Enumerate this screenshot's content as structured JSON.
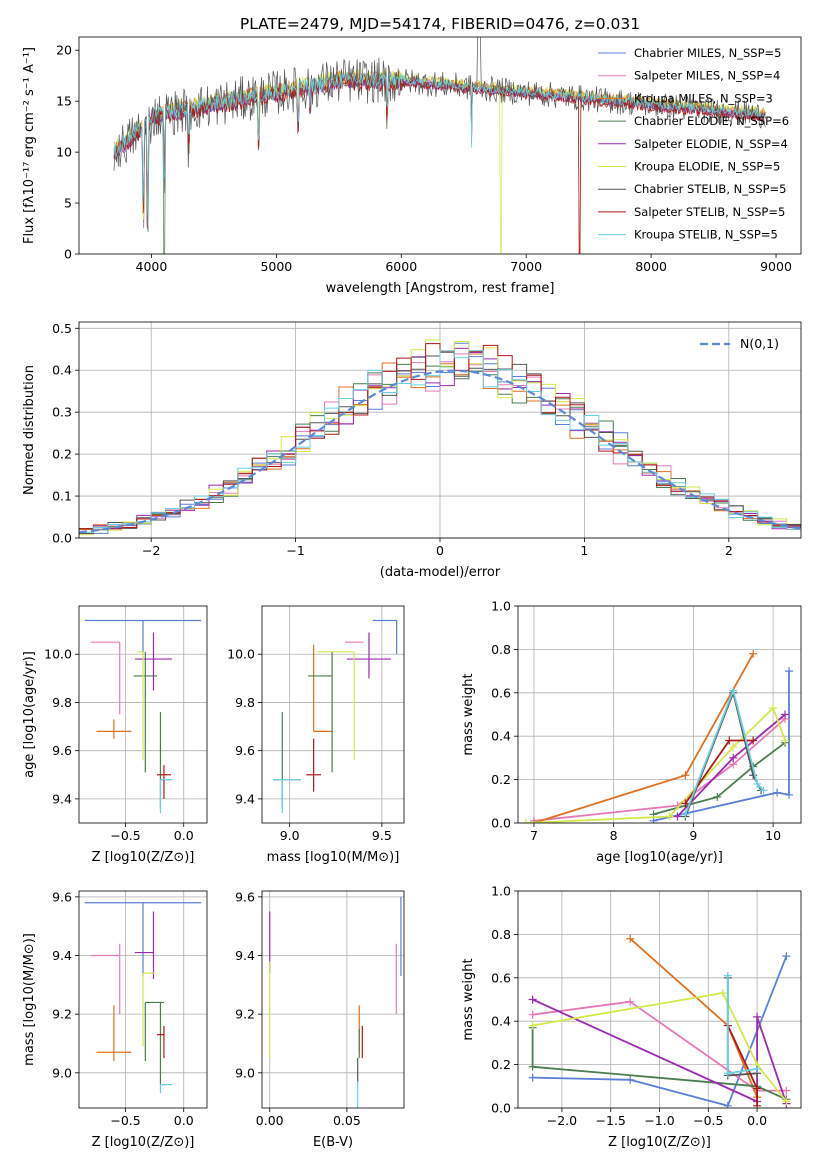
{
  "figure": {
    "title": "PLATE=2479, MJD=54174, FIBERID=0476, z=0.031"
  },
  "chart_data": [
    {
      "id": "spectrum",
      "type": "line",
      "xlabel": "wavelength [Angstrom, rest frame]",
      "ylabel": "Flux [fλ10⁻¹⁷ erg cm⁻² s⁻¹ A⁻¹]",
      "xlim": [
        3420,
        9200
      ],
      "ylim": [
        0,
        21.3
      ],
      "xticks": [
        4000,
        5000,
        6000,
        7000,
        8000,
        9000
      ],
      "yticks": [
        0,
        5,
        10,
        15,
        20
      ],
      "grid": false,
      "legend_position": "top-right",
      "series": [
        {
          "name": "Chabrier MILES, N_SSP=5",
          "color": "#5b7fd6",
          "offset": 0.05
        },
        {
          "name": "Salpeter MILES, N_SSP=4",
          "color": "#e67ab8",
          "offset": 0.15
        },
        {
          "name": "Kroupa MILES, N_SSP=3",
          "color": "#e07020",
          "offset": 0.25
        },
        {
          "name": "Chabrier ELODIE, N_SSP=6",
          "color": "#4b7d50",
          "offset": -0.05
        },
        {
          "name": "Salpeter ELODIE, N_SSP=4",
          "color": "#9b2bb0",
          "offset": -0.15
        },
        {
          "name": "Kroupa ELODIE, N_SSP=5",
          "color": "#d4e84a",
          "offset": 0.35
        },
        {
          "name": "Chabrier STELIB, N_SSP=5",
          "color": "#555555",
          "offset": 0.0
        },
        {
          "name": "Salpeter STELIB, N_SSP=5",
          "color": "#b01818",
          "offset": -0.25
        },
        {
          "name": "Kroupa STELIB, N_SSP=5",
          "color": "#6ad0e0",
          "offset": 0.1
        }
      ]
    },
    {
      "id": "histogram",
      "type": "histogram",
      "xlabel": "(data-model)/error",
      "ylabel": "Normed distribution",
      "xlim": [
        -2.5,
        2.5
      ],
      "ylim": [
        0,
        0.515
      ],
      "xticks": [
        -2,
        -1,
        0,
        1,
        2
      ],
      "yticks": [
        0.0,
        0.1,
        0.2,
        0.3,
        0.4,
        0.5
      ],
      "grid": true,
      "legend_position": "top-right",
      "reference_curve": {
        "name": "N(0,1)",
        "mean": 0.1,
        "sigma": 1.0,
        "color": "#5b8ad6"
      }
    },
    {
      "id": "z_age",
      "type": "scatter",
      "xlabel": "Z [log10(Z/Z⊙)]",
      "ylabel": "age  [log10(age/yr)]",
      "xlim": [
        -0.9,
        0.2
      ],
      "ylim": [
        9.3,
        10.2
      ],
      "xticks": [
        -0.5,
        0.0
      ],
      "yticks": [
        9.4,
        9.6,
        9.8,
        10.0
      ],
      "grid": true,
      "points": [
        {
          "x": -0.35,
          "y": 10.14,
          "xerr_lo": 0.5,
          "xerr_hi": 0.5,
          "yerr_lo": 0.14,
          "yerr_hi": 0.0,
          "color": "#5b7fd6"
        },
        {
          "x": -0.55,
          "y": 10.05,
          "xerr_lo": 0.25,
          "xerr_hi": 0.0,
          "yerr_lo": 0.3,
          "yerr_hi": 0.0,
          "color": "#e67ab8"
        },
        {
          "x": -0.6,
          "y": 9.68,
          "xerr_lo": 0.15,
          "xerr_hi": 0.15,
          "yerr_lo": 0.03,
          "yerr_hi": 0.05,
          "color": "#e07020"
        },
        {
          "x": -0.33,
          "y": 9.91,
          "xerr_lo": 0.1,
          "xerr_hi": 0.1,
          "yerr_lo": 0.4,
          "yerr_hi": 0.1,
          "color": "#4b7d50"
        },
        {
          "x": -0.26,
          "y": 9.98,
          "xerr_lo": 0.16,
          "xerr_hi": 0.16,
          "yerr_lo": 0.13,
          "yerr_hi": 0.11,
          "color": "#9b2bb0"
        },
        {
          "x": -0.35,
          "y": 10.01,
          "xerr_lo": 0.05,
          "xerr_hi": 0.0,
          "yerr_lo": 0.45,
          "yerr_hi": 0.0,
          "color": "#d4e84a"
        },
        {
          "x": -0.2,
          "y": 9.48,
          "xerr_lo": 0.0,
          "xerr_hi": 0.1,
          "yerr_lo": 0.12,
          "yerr_hi": 0.28,
          "color": "#4b7d50"
        },
        {
          "x": -0.17,
          "y": 9.5,
          "xerr_lo": 0.06,
          "xerr_hi": 0.06,
          "yerr_lo": 0.1,
          "yerr_hi": 0.04,
          "color": "#b01818"
        },
        {
          "x": -0.2,
          "y": 9.48,
          "xerr_lo": 0.0,
          "xerr_hi": 0.1,
          "yerr_lo": 0.14,
          "yerr_hi": 0.0,
          "color": "#6ad0e0"
        }
      ]
    },
    {
      "id": "mass_age",
      "type": "scatter",
      "xlabel": "mass [log10(M/M⊙)]",
      "ylabel": "",
      "xlim": [
        8.85,
        9.62
      ],
      "ylim": [
        9.3,
        10.2
      ],
      "xticks": [
        9.0,
        9.5
      ],
      "yticks": [
        9.4,
        9.6,
        9.8,
        10.0
      ],
      "grid": true,
      "points": [
        {
          "x": 9.58,
          "y": 10.14,
          "xerr_lo": 0.13,
          "xerr_hi": 0.0,
          "yerr_lo": 0.14,
          "yerr_hi": 0.0,
          "color": "#5b7fd6"
        },
        {
          "x": 9.4,
          "y": 10.05,
          "xerr_lo": 0.1,
          "xerr_hi": 0.0,
          "yerr_lo": 0.0,
          "yerr_hi": 0.0,
          "color": "#e67ab8"
        },
        {
          "x": 9.13,
          "y": 9.68,
          "xerr_lo": 0.0,
          "xerr_hi": 0.1,
          "yerr_lo": 0.0,
          "yerr_hi": 0.36,
          "color": "#e07020"
        },
        {
          "x": 9.23,
          "y": 9.91,
          "xerr_lo": 0.13,
          "xerr_hi": 0.0,
          "yerr_lo": 0.4,
          "yerr_hi": 0.1,
          "color": "#4b7d50"
        },
        {
          "x": 9.43,
          "y": 9.98,
          "xerr_lo": 0.12,
          "xerr_hi": 0.12,
          "yerr_lo": 0.08,
          "yerr_hi": 0.11,
          "color": "#9b2bb0"
        },
        {
          "x": 9.35,
          "y": 10.01,
          "xerr_lo": 0.2,
          "xerr_hi": 0.0,
          "yerr_lo": 0.45,
          "yerr_hi": 0.0,
          "color": "#d4e84a"
        },
        {
          "x": 8.96,
          "y": 9.48,
          "xerr_lo": 0.05,
          "xerr_hi": 0.1,
          "yerr_lo": 0.12,
          "yerr_hi": 0.28,
          "color": "#4b7d50"
        },
        {
          "x": 9.13,
          "y": 9.5,
          "xerr_lo": 0.04,
          "xerr_hi": 0.04,
          "yerr_lo": 0.07,
          "yerr_hi": 0.15,
          "color": "#b01818"
        },
        {
          "x": 8.96,
          "y": 9.48,
          "xerr_lo": 0.05,
          "xerr_hi": 0.1,
          "yerr_lo": 0.14,
          "yerr_hi": 0.0,
          "color": "#6ad0e0"
        }
      ]
    },
    {
      "id": "age_weight",
      "type": "line",
      "xlabel": "age  [log10(age/yr)]",
      "ylabel": "mass weight",
      "xlim": [
        6.8,
        10.35
      ],
      "ylim": [
        0,
        1.0
      ],
      "xticks": [
        7,
        8,
        9,
        10
      ],
      "yticks": [
        0.0,
        0.2,
        0.4,
        0.6,
        0.8,
        1.0
      ],
      "grid": true,
      "series": [
        {
          "name": "Chabrier MILES",
          "color": "#5b7fd6",
          "points": [
            [
              8.5,
              0.01
            ],
            [
              10.05,
              0.14
            ],
            [
              10.2,
              0.13
            ],
            [
              10.2,
              0.7
            ]
          ]
        },
        {
          "name": "Salpeter MILES",
          "color": "#e67ab8",
          "points": [
            [
              7.0,
              0.01
            ],
            [
              8.8,
              0.08
            ],
            [
              9.5,
              0.27
            ],
            [
              10.15,
              0.48
            ]
          ]
        },
        {
          "name": "Kroupa MILES",
          "color": "#e07020",
          "points": [
            [
              7.0,
              0.0
            ],
            [
              8.9,
              0.22
            ],
            [
              9.75,
              0.78
            ]
          ]
        },
        {
          "name": "Chabrier ELODIE",
          "color": "#4b7d50",
          "points": [
            [
              8.5,
              0.04
            ],
            [
              9.3,
              0.12
            ],
            [
              9.75,
              0.26
            ],
            [
              10.15,
              0.37
            ]
          ]
        },
        {
          "name": "Salpeter ELODIE",
          "color": "#9b2bb0",
          "points": [
            [
              8.8,
              0.03
            ],
            [
              9.5,
              0.3
            ],
            [
              10.15,
              0.5
            ]
          ]
        },
        {
          "name": "Kroupa ELODIE",
          "color": "#d4e84a",
          "points": [
            [
              6.9,
              0.0
            ],
            [
              8.7,
              0.03
            ],
            [
              9.5,
              0.35
            ],
            [
              10.0,
              0.53
            ],
            [
              10.15,
              0.38
            ]
          ]
        },
        {
          "name": "Chabrier STELIB",
          "color": "#555555",
          "points": [
            [
              8.9,
              0.03
            ],
            [
              9.5,
              0.6
            ],
            [
              9.75,
              0.22
            ],
            [
              9.85,
              0.15
            ]
          ]
        },
        {
          "name": "Salpeter STELIB",
          "color": "#b01818",
          "points": [
            [
              8.9,
              0.09
            ],
            [
              9.45,
              0.38
            ],
            [
              9.75,
              0.38
            ]
          ]
        },
        {
          "name": "Kroupa STELIB",
          "color": "#6ad0e0",
          "points": [
            [
              8.9,
              0.04
            ],
            [
              9.5,
              0.61
            ],
            [
              9.8,
              0.18
            ],
            [
              9.88,
              0.15
            ]
          ]
        }
      ]
    },
    {
      "id": "z_mass",
      "type": "scatter",
      "xlabel": "Z [log10(Z/Z⊙)]",
      "ylabel": "mass [log10(M/M⊙)]",
      "xlim": [
        -0.9,
        0.2
      ],
      "ylim": [
        8.88,
        9.62
      ],
      "xticks": [
        -0.5,
        0.0
      ],
      "yticks": [
        9.0,
        9.2,
        9.4,
        9.6
      ],
      "grid": true,
      "points": [
        {
          "x": -0.35,
          "y": 9.58,
          "xerr_lo": 0.5,
          "xerr_hi": 0.5,
          "yerr_lo": 0.25,
          "yerr_hi": 0.0,
          "color": "#5b7fd6"
        },
        {
          "x": -0.55,
          "y": 9.4,
          "xerr_lo": 0.25,
          "xerr_hi": 0.0,
          "yerr_lo": 0.2,
          "yerr_hi": 0.04,
          "color": "#e67ab8"
        },
        {
          "x": -0.6,
          "y": 9.07,
          "xerr_lo": 0.15,
          "xerr_hi": 0.15,
          "yerr_lo": 0.03,
          "yerr_hi": 0.16,
          "color": "#e07020"
        },
        {
          "x": -0.33,
          "y": 9.24,
          "xerr_lo": 0.0,
          "xerr_hi": 0.16,
          "yerr_lo": 0.2,
          "yerr_hi": 0.0,
          "color": "#4b7d50"
        },
        {
          "x": -0.26,
          "y": 9.41,
          "xerr_lo": 0.16,
          "xerr_hi": 0.0,
          "yerr_lo": 0.09,
          "yerr_hi": 0.14,
          "color": "#9b2bb0"
        },
        {
          "x": -0.35,
          "y": 9.34,
          "xerr_lo": 0.0,
          "xerr_hi": 0.1,
          "yerr_lo": 0.25,
          "yerr_hi": 0.0,
          "color": "#d4e84a"
        },
        {
          "x": -0.2,
          "y": 8.96,
          "xerr_lo": 0.0,
          "xerr_hi": 0.05,
          "yerr_lo": 0.0,
          "yerr_hi": 0.28,
          "color": "#4b7d50"
        },
        {
          "x": -0.17,
          "y": 9.13,
          "xerr_lo": 0.06,
          "xerr_hi": 0.0,
          "yerr_lo": 0.08,
          "yerr_hi": 0.03,
          "color": "#b01818"
        },
        {
          "x": -0.2,
          "y": 8.96,
          "xerr_lo": 0.0,
          "xerr_hi": 0.1,
          "yerr_lo": 0.03,
          "yerr_hi": 0.0,
          "color": "#6ad0e0"
        }
      ]
    },
    {
      "id": "ebv_mass",
      "type": "scatter",
      "xlabel": "E(B-V)",
      "ylabel": "",
      "xlim": [
        -0.005,
        0.087
      ],
      "ylim": [
        8.88,
        9.62
      ],
      "xticks": [
        0.0,
        0.05
      ],
      "yticks": [
        9.0,
        9.2,
        9.4,
        9.6
      ],
      "grid": true,
      "points": [
        {
          "x": 0.085,
          "y": 9.6,
          "xerr_lo": 0.0,
          "xerr_hi": 0.0,
          "yerr_lo": 0.27,
          "yerr_hi": 0.0,
          "color": "#5b7fd6"
        },
        {
          "x": 0.082,
          "y": 9.36,
          "xerr_lo": 0.0,
          "xerr_hi": 0.0,
          "yerr_lo": 0.16,
          "yerr_hi": 0.08,
          "color": "#e67ab8"
        },
        {
          "x": 0.058,
          "y": 9.15,
          "xerr_lo": 0.0,
          "xerr_hi": 0.0,
          "yerr_lo": 0.08,
          "yerr_hi": 0.08,
          "color": "#e07020"
        },
        {
          "x": 0.058,
          "y": 9.05,
          "xerr_lo": 0.0,
          "xerr_hi": 0.0,
          "yerr_lo": 0.0,
          "yerr_hi": 0.1,
          "color": "#4b7d50"
        },
        {
          "x": 0.0,
          "y": 9.41,
          "xerr_lo": 0.0,
          "xerr_hi": 0.0,
          "yerr_lo": 0.07,
          "yerr_hi": 0.14,
          "color": "#9b2bb0"
        },
        {
          "x": 0.0,
          "y": 9.2,
          "xerr_lo": 0.0,
          "xerr_hi": 0.0,
          "yerr_lo": 0.15,
          "yerr_hi": 0.18,
          "color": "#d4e84a"
        },
        {
          "x": 0.057,
          "y": 8.97,
          "xerr_lo": 0.0,
          "xerr_hi": 0.0,
          "yerr_lo": 0.0,
          "yerr_hi": 0.08,
          "color": "#555555"
        },
        {
          "x": 0.06,
          "y": 9.12,
          "xerr_lo": 0.0,
          "xerr_hi": 0.0,
          "yerr_lo": 0.07,
          "yerr_hi": 0.04,
          "color": "#b01818"
        },
        {
          "x": 0.057,
          "y": 8.97,
          "xerr_lo": 0.0,
          "xerr_hi": 0.0,
          "yerr_lo": 0.09,
          "yerr_hi": 0.0,
          "color": "#6ad0e0"
        }
      ]
    },
    {
      "id": "z_weight",
      "type": "line",
      "xlabel": "Z [log10(Z/Z⊙)]",
      "ylabel": "mass weight",
      "xlim": [
        -2.45,
        0.45
      ],
      "ylim": [
        0,
        1.0
      ],
      "xticks": [
        -2.0,
        -1.5,
        -1.0,
        -0.5,
        0.0
      ],
      "yticks": [
        0.0,
        0.2,
        0.4,
        0.6,
        0.8,
        1.0
      ],
      "grid": true,
      "series": [
        {
          "name": "Chabrier MILES",
          "color": "#5b7fd6",
          "points": [
            [
              -2.3,
              0.14
            ],
            [
              -1.3,
              0.13
            ],
            [
              -0.3,
              0.01
            ],
            [
              0.3,
              0.7
            ]
          ]
        },
        {
          "name": "Salpeter MILES",
          "color": "#e67ab8",
          "points": [
            [
              -2.3,
              0.43
            ],
            [
              -1.3,
              0.49
            ],
            [
              0.0,
              0.08
            ],
            [
              0.3,
              0.08
            ]
          ]
        },
        {
          "name": "Kroupa MILES",
          "color": "#e07020",
          "points": [
            [
              -1.3,
              0.78
            ],
            [
              -0.3,
              0.38
            ],
            [
              0.0,
              0.05
            ]
          ]
        },
        {
          "name": "Chabrier ELODIE",
          "color": "#4b7d50",
          "points": [
            [
              -2.3,
              0.37
            ],
            [
              -2.3,
              0.19
            ],
            [
              0.0,
              0.1
            ],
            [
              0.3,
              0.04
            ]
          ]
        },
        {
          "name": "Salpeter ELODIE",
          "color": "#9b2bb0",
          "points": [
            [
              -2.3,
              0.5
            ],
            [
              0.0,
              0.03
            ],
            [
              0.0,
              0.42
            ],
            [
              0.3,
              0.02
            ]
          ]
        },
        {
          "name": "Kroupa ELODIE",
          "color": "#d4e84a",
          "points": [
            [
              -2.3,
              0.38
            ],
            [
              -0.35,
              0.53
            ],
            [
              0.0,
              0.2
            ],
            [
              0.3,
              0.03
            ]
          ]
        },
        {
          "name": "Chabrier STELIB",
          "color": "#555555",
          "points": [
            [
              -0.3,
              0.6
            ],
            [
              -0.3,
              0.15
            ],
            [
              0.0,
              0.16
            ]
          ]
        },
        {
          "name": "Salpeter STELIB",
          "color": "#b01818",
          "points": [
            [
              -0.3,
              0.38
            ],
            [
              0.0,
              0.09
            ],
            [
              0.0,
              0.01
            ]
          ]
        },
        {
          "name": "Kroupa STELIB",
          "color": "#6ad0e0",
          "points": [
            [
              -0.3,
              0.61
            ],
            [
              -0.3,
              0.16
            ],
            [
              0.0,
              0.18
            ]
          ]
        }
      ]
    }
  ]
}
